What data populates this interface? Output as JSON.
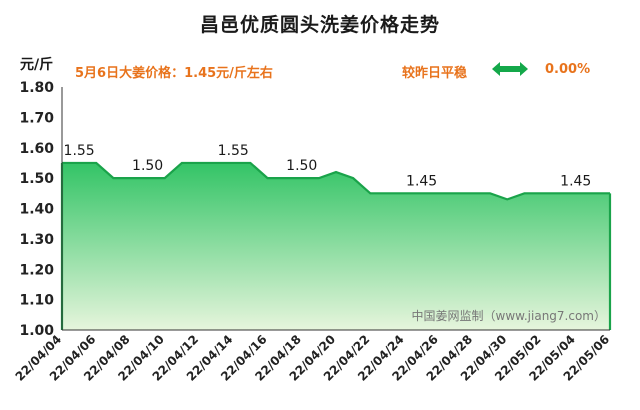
{
  "title": "昌邑优质圆头洗姜价格走势",
  "unit_label": "元/斤",
  "price_note": "5月6日大姜价格：1.45元/斤左右",
  "compare": {
    "label": "较昨日平稳",
    "value": "0.00%",
    "arrow_icon": "double-arrow-icon"
  },
  "watermark": "中国姜网监制（www.jiang7.com）",
  "colors": {
    "accent_orange": "#e8731c",
    "line_green": "#1aa34a",
    "fill_top": "#33c466",
    "fill_bottom": "#e6f5dc",
    "arrow_green": "#14a84a"
  },
  "chart_data": {
    "type": "area",
    "ylim": [
      1.0,
      1.8
    ],
    "yticks": [
      "1.00",
      "1.10",
      "1.20",
      "1.30",
      "1.40",
      "1.50",
      "1.60",
      "1.70",
      "1.80"
    ],
    "grid": false,
    "xtick_labels": [
      "22/04/04",
      "22/04/06",
      "22/04/08",
      "22/04/10",
      "22/04/12",
      "22/04/14",
      "22/04/16",
      "22/04/18",
      "22/04/20",
      "22/04/22",
      "22/04/24",
      "22/04/26",
      "22/04/28",
      "22/04/30",
      "22/05/02",
      "22/05/04",
      "22/05/06"
    ],
    "x": [
      "22/04/04",
      "22/04/05",
      "22/04/06",
      "22/04/07",
      "22/04/08",
      "22/04/09",
      "22/04/10",
      "22/04/11",
      "22/04/12",
      "22/04/13",
      "22/04/14",
      "22/04/15",
      "22/04/16",
      "22/04/17",
      "22/04/18",
      "22/04/19",
      "22/04/20",
      "22/04/21",
      "22/04/22",
      "22/04/23",
      "22/04/24",
      "22/04/25",
      "22/04/26",
      "22/04/27",
      "22/04/28",
      "22/04/29",
      "22/04/30",
      "22/05/01",
      "22/05/02",
      "22/05/03",
      "22/05/04",
      "22/05/05",
      "22/05/06"
    ],
    "values": [
      1.55,
      1.55,
      1.55,
      1.5,
      1.5,
      1.5,
      1.5,
      1.55,
      1.55,
      1.55,
      1.55,
      1.55,
      1.5,
      1.5,
      1.5,
      1.5,
      1.52,
      1.5,
      1.45,
      1.45,
      1.45,
      1.45,
      1.45,
      1.45,
      1.45,
      1.45,
      1.43,
      1.45,
      1.45,
      1.45,
      1.45,
      1.45,
      1.45
    ],
    "data_labels": [
      {
        "x": "22/04/05",
        "text": "1.55"
      },
      {
        "x": "22/04/09",
        "text": "1.50"
      },
      {
        "x": "22/04/14",
        "text": "1.55"
      },
      {
        "x": "22/04/18",
        "text": "1.50"
      },
      {
        "x": "22/04/25",
        "text": "1.45"
      },
      {
        "x": "22/05/04",
        "text": "1.45"
      }
    ]
  }
}
